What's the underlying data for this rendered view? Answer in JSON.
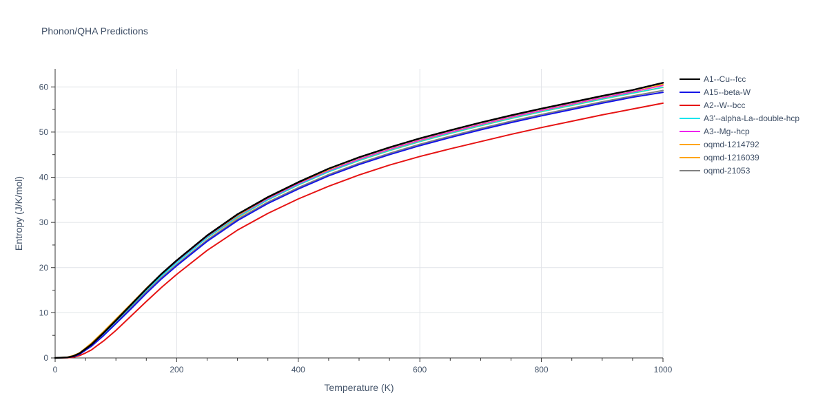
{
  "chart_data": {
    "type": "line",
    "title": "Phonon/QHA Predictions",
    "xlabel": "Temperature (K)",
    "ylabel": "Entropy (J/K/mol)",
    "xlim": [
      0,
      1000
    ],
    "ylim": [
      0,
      64
    ],
    "xticks": [
      0,
      200,
      400,
      600,
      800,
      1000
    ],
    "yticks": [
      0,
      10,
      20,
      30,
      40,
      50,
      60
    ],
    "grid": true,
    "legend_position": "right",
    "x": [
      0,
      20,
      30,
      40,
      50,
      60,
      70,
      80,
      100,
      125,
      150,
      175,
      200,
      250,
      300,
      350,
      400,
      450,
      500,
      550,
      600,
      650,
      700,
      750,
      800,
      850,
      900,
      950,
      1000
    ],
    "series": [
      {
        "name": "A1--Cu--fcc",
        "color": "#000000",
        "width": 2.5,
        "values": [
          0,
          0.1,
          0.4,
          1.0,
          2.0,
          3.0,
          4.3,
          5.6,
          8.3,
          11.8,
          15.3,
          18.6,
          21.6,
          27.1,
          31.8,
          35.6,
          38.9,
          41.9,
          44.4,
          46.6,
          48.6,
          50.4,
          52.1,
          53.7,
          55.2,
          56.6,
          58.0,
          59.3,
          60.9
        ]
      },
      {
        "name": "A15--beta-W",
        "color": "#1414e6",
        "width": 2,
        "values": [
          0,
          0.1,
          0.3,
          0.8,
          1.7,
          2.6,
          3.8,
          5.0,
          7.6,
          10.9,
          14.3,
          17.5,
          20.4,
          25.8,
          30.4,
          34.2,
          37.4,
          40.3,
          42.8,
          45.0,
          47.0,
          48.8,
          50.5,
          52.1,
          53.6,
          55.0,
          56.4,
          57.7,
          58.8
        ]
      },
      {
        "name": "A2--W--bcc",
        "color": "#e61414",
        "width": 2,
        "values": [
          0,
          0.05,
          0.15,
          0.5,
          1.1,
          1.8,
          2.8,
          3.8,
          6.1,
          9.3,
          12.5,
          15.6,
          18.5,
          23.8,
          28.3,
          32.0,
          35.2,
          38.0,
          40.5,
          42.7,
          44.6,
          46.3,
          47.9,
          49.5,
          51.0,
          52.4,
          53.8,
          55.1,
          56.4
        ]
      },
      {
        "name": "A3'--alpha-La--double-hcp",
        "color": "#00e5ee",
        "width": 1.5,
        "values": [
          0,
          0.12,
          0.45,
          1.0,
          2.0,
          3.0,
          4.2,
          5.4,
          8.1,
          11.5,
          15.0,
          18.2,
          21.1,
          26.6,
          31.2,
          35.0,
          38.3,
          41.2,
          43.7,
          45.9,
          47.9,
          49.7,
          51.4,
          53.0,
          54.5,
          55.9,
          57.3,
          58.6,
          59.9
        ]
      },
      {
        "name": "A3--Mg--hcp",
        "color": "#ee22ee",
        "width": 1.5,
        "values": [
          0,
          0.12,
          0.45,
          1.0,
          2.0,
          3.0,
          4.2,
          5.4,
          8.1,
          11.5,
          15.0,
          18.2,
          21.2,
          26.7,
          31.3,
          35.2,
          38.5,
          41.4,
          44.0,
          46.2,
          48.2,
          50.0,
          51.7,
          53.3,
          54.8,
          56.2,
          57.6,
          58.9,
          60.3
        ]
      },
      {
        "name": "oqmd-1214792",
        "color": "#ffa500",
        "width": 2,
        "values": [
          0,
          0.15,
          0.5,
          1.1,
          2.1,
          3.2,
          4.5,
          5.8,
          8.5,
          11.9,
          15.3,
          18.5,
          21.3,
          26.6,
          31.1,
          35.0,
          38.3,
          41.2,
          43.7,
          45.9,
          47.9,
          49.7,
          51.4,
          53.0,
          54.5,
          55.9,
          57.3,
          58.6,
          59.9
        ]
      },
      {
        "name": "oqmd-1216039",
        "color": "#ffa500",
        "width": 2,
        "values": [
          0,
          0.15,
          0.5,
          1.1,
          2.2,
          3.3,
          4.6,
          5.9,
          8.6,
          12.0,
          15.4,
          18.6,
          21.5,
          26.9,
          31.4,
          35.3,
          38.6,
          41.5,
          44.0,
          46.2,
          48.2,
          50.0,
          51.7,
          53.3,
          54.8,
          56.2,
          57.6,
          58.9,
          60.5
        ]
      },
      {
        "name": "oqmd-21053",
        "color": "#808080",
        "width": 2,
        "values": [
          0,
          0.1,
          0.4,
          0.9,
          1.8,
          2.8,
          4.0,
          5.2,
          7.8,
          11.2,
          14.6,
          17.8,
          20.7,
          26.1,
          30.7,
          34.5,
          37.7,
          40.6,
          43.1,
          45.3,
          47.3,
          49.1,
          50.8,
          52.4,
          53.9,
          55.3,
          56.7,
          58.0,
          59.2
        ]
      }
    ]
  }
}
